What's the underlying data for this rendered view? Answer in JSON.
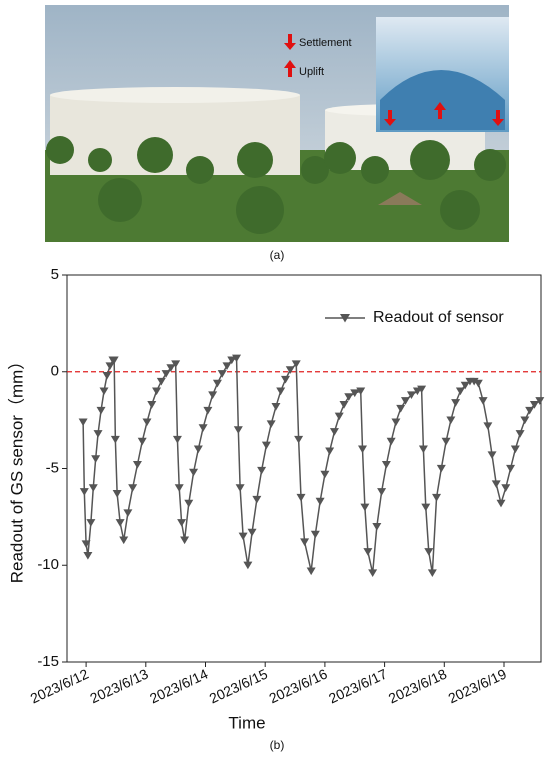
{
  "photo": {
    "annotations": [
      "Settlement",
      "Uplift"
    ],
    "caption": "(a)"
  },
  "chart_caption": "(b)",
  "chart_data": {
    "type": "line",
    "x_label": "Time",
    "y_label": "Readout of GS sensor（mm）",
    "x": [
      11.95,
      11.97,
      12.0,
      12.03,
      12.08,
      12.12,
      12.16,
      12.2,
      12.25,
      12.3,
      12.35,
      12.4,
      12.45,
      12.47,
      12.49,
      12.52,
      12.57,
      12.63,
      12.7,
      12.78,
      12.86,
      12.94,
      13.02,
      13.1,
      13.18,
      13.26,
      13.34,
      13.42,
      13.5,
      13.53,
      13.56,
      13.6,
      13.65,
      13.72,
      13.8,
      13.88,
      13.96,
      14.04,
      14.12,
      14.2,
      14.28,
      14.36,
      14.44,
      14.52,
      14.55,
      14.58,
      14.63,
      14.71,
      14.78,
      14.86,
      14.94,
      15.02,
      15.1,
      15.18,
      15.26,
      15.34,
      15.42,
      15.52,
      15.56,
      15.6,
      15.66,
      15.77,
      15.84,
      15.92,
      16.0,
      16.08,
      16.16,
      16.24,
      16.32,
      16.4,
      16.5,
      16.6,
      16.63,
      16.67,
      16.72,
      16.8,
      16.87,
      16.95,
      17.03,
      17.11,
      17.19,
      17.27,
      17.35,
      17.45,
      17.55,
      17.62,
      17.65,
      17.69,
      17.74,
      17.8,
      17.87,
      17.95,
      18.03,
      18.11,
      18.19,
      18.27,
      18.35,
      18.43,
      18.5,
      18.57,
      18.65,
      18.73,
      18.8,
      18.87,
      18.95,
      19.03,
      19.11,
      19.19,
      19.27,
      19.35,
      19.43,
      19.51,
      19.6
    ],
    "series": [
      {
        "name": "Readout of sensor",
        "color": "#555555",
        "values": [
          -2.6,
          -6.2,
          -8.9,
          -9.5,
          -7.8,
          -6.0,
          -4.5,
          -3.2,
          -2.0,
          -1.0,
          -0.2,
          0.3,
          0.6,
          0.6,
          -3.5,
          -6.3,
          -7.8,
          -8.7,
          -7.3,
          -6.0,
          -4.8,
          -3.6,
          -2.6,
          -1.7,
          -1.0,
          -0.5,
          -0.1,
          0.2,
          0.4,
          -3.5,
          -6.0,
          -7.8,
          -8.7,
          -6.8,
          -5.2,
          -4.0,
          -2.9,
          -2.0,
          -1.2,
          -0.6,
          -0.1,
          0.3,
          0.6,
          0.7,
          -3.0,
          -6.0,
          -8.5,
          -10.0,
          -8.3,
          -6.6,
          -5.1,
          -3.8,
          -2.7,
          -1.8,
          -1.0,
          -0.4,
          0.1,
          0.4,
          -3.5,
          -6.5,
          -8.8,
          -10.3,
          -8.4,
          -6.7,
          -5.3,
          -4.1,
          -3.1,
          -2.3,
          -1.7,
          -1.3,
          -1.1,
          -1.0,
          -4.0,
          -7.0,
          -9.3,
          -10.4,
          -8.0,
          -6.2,
          -4.8,
          -3.6,
          -2.6,
          -1.9,
          -1.5,
          -1.2,
          -1.0,
          -0.9,
          -4.0,
          -7.0,
          -9.3,
          -10.4,
          -6.5,
          -5.0,
          -3.6,
          -2.5,
          -1.6,
          -1.0,
          -0.7,
          -0.5,
          -0.5,
          -0.6,
          -1.5,
          -2.8,
          -4.3,
          -5.8,
          -6.8,
          -6.0,
          -5.0,
          -4.0,
          -3.2,
          -2.5,
          -2.0,
          -1.7,
          -1.5
        ]
      }
    ],
    "xlim": [
      11.68,
      19.62
    ],
    "xticks": [
      {
        "value": 12,
        "label": "2023/6/12"
      },
      {
        "value": 13,
        "label": "2023/6/13"
      },
      {
        "value": 14,
        "label": "2023/6/14"
      },
      {
        "value": 15,
        "label": "2023/6/15"
      },
      {
        "value": 16,
        "label": "2023/6/16"
      },
      {
        "value": 17,
        "label": "2023/6/17"
      },
      {
        "value": 18,
        "label": "2023/6/18"
      },
      {
        "value": 19,
        "label": "2023/6/19"
      }
    ],
    "ylim": [
      -15,
      5
    ],
    "yticks": [
      -15,
      -10,
      -5,
      0,
      5
    ],
    "reference_line": 0,
    "reference_color": "#e02020",
    "legend": "upper right",
    "marker": "triangle-down"
  }
}
